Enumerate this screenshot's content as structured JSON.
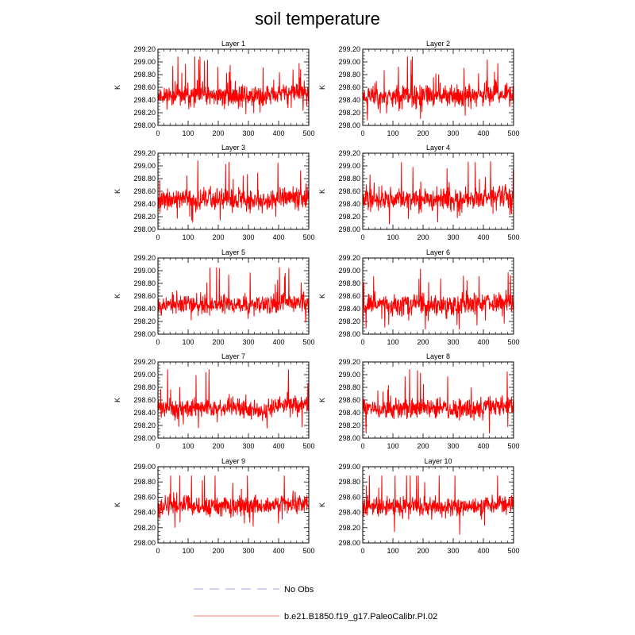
{
  "chart_data": {
    "type": "line",
    "title": "soil temperature",
    "x_ticks": [
      0,
      100,
      200,
      300,
      400,
      500
    ],
    "xlim": [
      0,
      500
    ],
    "n_points": 500,
    "series_color": "#ff0000",
    "legend": [
      {
        "label": "No Obs",
        "color": "#b3b3ff",
        "style": "dashed"
      },
      {
        "label": "b.e21.B1850.f19_g17.PaleoCalibr.PI.02",
        "color": "#ff9999",
        "style": "solid"
      }
    ],
    "panels": [
      {
        "title": "Layer 1",
        "ylabel": "K",
        "ylim": [
          298.0,
          299.2
        ],
        "y_ticks": [
          "298.00",
          "298.20",
          "298.40",
          "298.60",
          "298.80",
          "299.00",
          "299.20"
        ],
        "baseline": 298.47,
        "amplitude": 0.18,
        "seed": 11
      },
      {
        "title": "Layer 2",
        "ylabel": "K",
        "ylim": [
          298.0,
          299.2
        ],
        "y_ticks": [
          "298.00",
          "298.20",
          "298.40",
          "298.60",
          "298.80",
          "299.00",
          "299.20"
        ],
        "baseline": 298.47,
        "amplitude": 0.18,
        "seed": 23
      },
      {
        "title": "Layer 3",
        "ylabel": "K",
        "ylim": [
          298.0,
          299.2
        ],
        "y_ticks": [
          "298.00",
          "298.20",
          "298.40",
          "298.60",
          "298.80",
          "299.00",
          "299.20"
        ],
        "baseline": 298.47,
        "amplitude": 0.18,
        "seed": 37
      },
      {
        "title": "Layer 4",
        "ylabel": "K",
        "ylim": [
          298.0,
          299.2
        ],
        "y_ticks": [
          "298.00",
          "298.20",
          "298.40",
          "298.60",
          "298.80",
          "299.00",
          "299.20"
        ],
        "baseline": 298.47,
        "amplitude": 0.18,
        "seed": 41
      },
      {
        "title": "Layer 5",
        "ylabel": "K",
        "ylim": [
          298.0,
          299.2
        ],
        "y_ticks": [
          "298.00",
          "298.20",
          "298.40",
          "298.60",
          "298.80",
          "299.00",
          "299.20"
        ],
        "baseline": 298.47,
        "amplitude": 0.17,
        "seed": 53
      },
      {
        "title": "Layer 6",
        "ylabel": "K",
        "ylim": [
          298.0,
          299.2
        ],
        "y_ticks": [
          "298.00",
          "298.20",
          "298.40",
          "298.60",
          "298.80",
          "299.00",
          "299.20"
        ],
        "baseline": 298.47,
        "amplitude": 0.17,
        "seed": 67
      },
      {
        "title": "Layer 7",
        "ylabel": "K",
        "ylim": [
          298.0,
          299.2
        ],
        "y_ticks": [
          "298.00",
          "298.20",
          "298.40",
          "298.60",
          "298.80",
          "299.00",
          "299.20"
        ],
        "baseline": 298.47,
        "amplitude": 0.16,
        "seed": 71
      },
      {
        "title": "Layer 8",
        "ylabel": "K",
        "ylim": [
          298.0,
          299.2
        ],
        "y_ticks": [
          "298.00",
          "298.20",
          "298.40",
          "298.60",
          "298.80",
          "299.00",
          "299.20"
        ],
        "baseline": 298.47,
        "amplitude": 0.16,
        "seed": 83
      },
      {
        "title": "Layer 9",
        "ylabel": "K",
        "ylim": [
          298.0,
          299.0
        ],
        "y_ticks": [
          "298.00",
          "298.20",
          "298.40",
          "298.60",
          "298.80",
          "299.00"
        ],
        "baseline": 298.48,
        "amplitude": 0.14,
        "seed": 97
      },
      {
        "title": "Layer 10",
        "ylabel": "K",
        "ylim": [
          298.0,
          299.0
        ],
        "y_ticks": [
          "298.00",
          "298.20",
          "298.40",
          "298.60",
          "298.80",
          "299.00"
        ],
        "baseline": 298.48,
        "amplitude": 0.13,
        "seed": 101
      }
    ]
  }
}
